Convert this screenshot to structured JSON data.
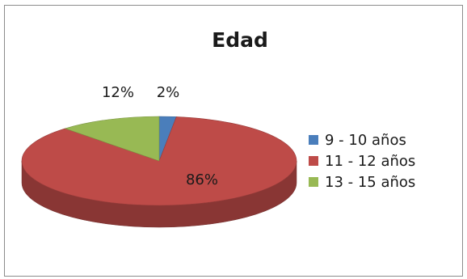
{
  "chart_data": {
    "type": "pie",
    "title": "Edad",
    "categories": [
      "9 - 10 años",
      "11 - 12 años",
      "13 - 15 años"
    ],
    "values": [
      2,
      86,
      12
    ],
    "value_labels": [
      "2%",
      "86%",
      "12%"
    ],
    "colors": [
      "#4a7ebb",
      "#be4b48",
      "#98b954"
    ],
    "legend_position": "right",
    "style": "3d"
  }
}
